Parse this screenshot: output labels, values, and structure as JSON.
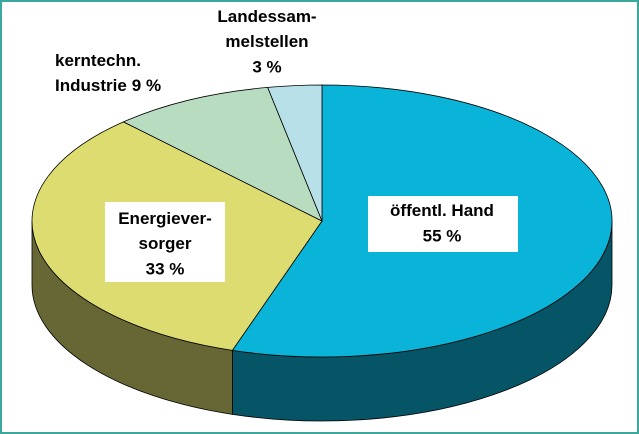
{
  "chart_data": {
    "type": "pie3d",
    "categories": [
      [
        "öffentl. Hand"
      ],
      [
        "Energiever-",
        "sorger"
      ],
      [
        "kerntechn.",
        "Industrie"
      ],
      [
        "Landessam-",
        "melstellen"
      ]
    ],
    "values": [
      55,
      33,
      9,
      3
    ],
    "value_labels": [
      "55 %",
      "33 %",
      "9 %",
      "3 %"
    ],
    "colors": [
      "#0ab4d8",
      "#dcdc70",
      "#b8dcc0",
      "#b8e0e8"
    ]
  }
}
